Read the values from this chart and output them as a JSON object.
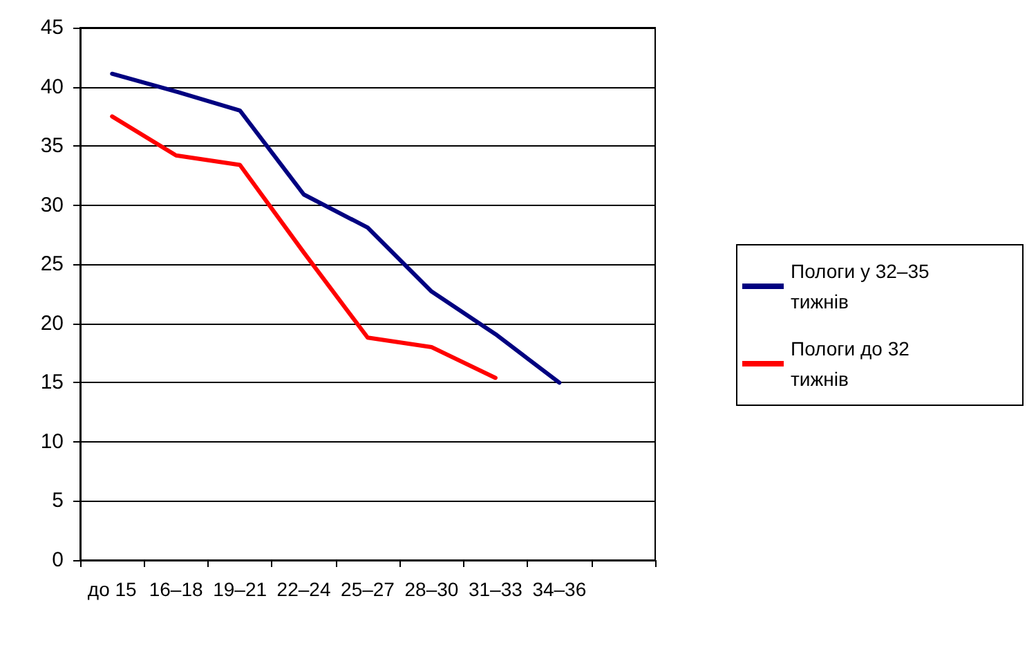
{
  "chart_data": {
    "type": "line",
    "categories": [
      "до 15",
      "16–18",
      "19–21",
      "22–24",
      "25–27",
      "28–30",
      "31–33",
      "34–36",
      null
    ],
    "series": [
      {
        "name": "Пологи у 32–35 тижнів",
        "color": "#000080",
        "values": [
          41.1,
          39.6,
          38,
          30.9,
          28.1,
          22.7,
          19.1,
          15,
          null
        ]
      },
      {
        "name": "Пологи до 32 тижнів",
        "color": "#ff0000",
        "values": [
          37.5,
          34.2,
          33.4,
          26,
          18.8,
          18,
          15.4,
          null,
          null
        ]
      }
    ],
    "ylim": [
      0,
      45
    ],
    "yticks": [
      0,
      5,
      10,
      15,
      20,
      25,
      30,
      35,
      40,
      45
    ],
    "grid": "y",
    "legend": "right",
    "marker": "none",
    "line_style": "solid"
  }
}
